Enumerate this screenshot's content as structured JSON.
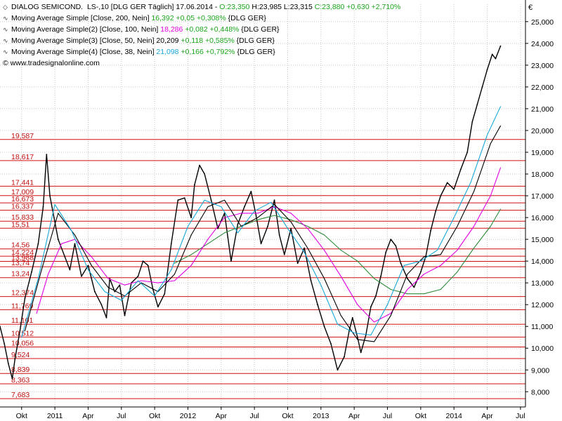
{
  "header": {
    "line1": {
      "symbol": "DIALOG SEMICOND.",
      "meta": "LS-,10 [DLG GER  Täglich] 17.06.2014 - ",
      "ohlc_open": "O:23,350",
      "ohlc_hlc": " H:23,985 L:23,315 ",
      "ohlc_close": "C:23,880",
      "change": " +0,630",
      "change_pct": " +2,710%"
    },
    "indicators": [
      {
        "label": "Moving Average Simple [Close, 200, Nein] ",
        "value": "16,392",
        "change": " +0,05",
        "change_pct": " +0,308%",
        "suffix": " {DLG GER}",
        "value_color_class": "up"
      },
      {
        "label": "Moving Average Simple(2) [Close, 100, Nein] ",
        "value": "18,286",
        "change": " +0,082",
        "change_pct": " +0,448%",
        "suffix": " {DLG GER}",
        "value_color_class": "mag"
      },
      {
        "label": "Moving Average Simple(3) [Close, 50, Nein] ",
        "value": "20,209",
        "change": " +0,118",
        "change_pct": " +0,585%",
        "suffix": " {DLG GER}",
        "value_color_class": "blk"
      },
      {
        "label": "Moving Average Simple(4) [Close, 38, Nein] ",
        "value": "21,098",
        "change": " +0,166",
        "change_pct": " +0,792%",
        "suffix": " {DLG GER}",
        "value_color_class": "cyn"
      }
    ],
    "copyright": "© www.tradesignalonline.com"
  },
  "colors": {
    "price": "#000000",
    "ma200": "#2e8b3a",
    "ma100": "#e000e0",
    "ma50": "#000000",
    "ma38": "#17a8d6",
    "levels": "#d01010",
    "grid": "#c8c8c8",
    "up_text": "#1aa51a"
  },
  "chart_data": {
    "type": "line",
    "currency_label": "€",
    "ylim": [
      7.3,
      25.8
    ],
    "y_ticks": [
      "8,000",
      "9,000",
      "10,000",
      "11,000",
      "12,000",
      "13,000",
      "14,000",
      "15,000",
      "16,000",
      "17,000",
      "18,000",
      "19,000",
      "20,000",
      "21,000",
      "22,000",
      "23,000",
      "24,000",
      "25,000"
    ],
    "x_ticks": [
      "Okt",
      "2011",
      "Apr",
      "Jul",
      "Okt",
      "2012",
      "Apr",
      "Jul",
      "Okt",
      "2013",
      "Apr",
      "Jul",
      "Okt",
      "2014",
      "Apr",
      "Jul"
    ],
    "x_tick_pos": [
      0.4,
      1.4,
      2.4,
      3.4,
      4.4,
      5.4,
      6.4,
      7.4,
      8.4,
      9.4,
      10.4,
      11.4,
      12.4,
      13.4,
      14.4,
      15.4
    ],
    "x_range": [
      -0.25,
      15.55
    ],
    "price_levels": [
      {
        "value": 19.587,
        "label": "19,587"
      },
      {
        "value": 18.617,
        "label": "18,617"
      },
      {
        "value": 17.441,
        "label": "17,441"
      },
      {
        "value": 17.009,
        "label": "17,009"
      },
      {
        "value": 16.673,
        "label": "16,673"
      },
      {
        "value": 16.337,
        "label": "16,337"
      },
      {
        "value": 15.833,
        "label": "15,833"
      },
      {
        "value": 15.51,
        "label": "15,51"
      },
      {
        "value": 14.56,
        "label": "14,56"
      },
      {
        "value": 14.224,
        "label": "14,224"
      },
      {
        "value": 13.988,
        "label": "13,988"
      },
      {
        "value": 13.74,
        "label": "13,74"
      },
      {
        "value": 13.24,
        "label": "13,24"
      },
      {
        "value": 12.374,
        "label": "12,374"
      },
      {
        "value": 11.769,
        "label": "11,769"
      },
      {
        "value": 11.101,
        "label": "11,101"
      },
      {
        "value": 10.512,
        "label": "10,512"
      },
      {
        "value": 10.056,
        "label": "10,056"
      },
      {
        "value": 9.524,
        "label": "9,524"
      },
      {
        "value": 8.839,
        "label": "8,839"
      },
      {
        "value": 8.363,
        "label": "8,363"
      },
      {
        "value": 7.683,
        "label": "7,683"
      }
    ],
    "series": [
      {
        "name": "DIALOG SEMICOND.",
        "key": "price",
        "x": [
          -0.25,
          -0.12,
          0.0,
          0.12,
          0.2,
          0.35,
          0.5,
          0.7,
          0.9,
          1.05,
          1.15,
          1.25,
          1.35,
          1.5,
          1.7,
          1.85,
          2.0,
          2.2,
          2.4,
          2.6,
          2.8,
          2.95,
          3.05,
          3.2,
          3.35,
          3.5,
          3.7,
          3.9,
          4.05,
          4.2,
          4.35,
          4.5,
          4.7,
          4.9,
          5.1,
          5.3,
          5.5,
          5.6,
          5.75,
          5.9,
          6.1,
          6.3,
          6.5,
          6.6,
          6.7,
          6.9,
          7.1,
          7.3,
          7.45,
          7.6,
          7.8,
          8.0,
          8.15,
          8.3,
          8.5,
          8.7,
          8.9,
          9.1,
          9.3,
          9.5,
          9.7,
          9.9,
          10.1,
          10.25,
          10.35,
          10.5,
          10.6,
          10.75,
          10.9,
          11.05,
          11.2,
          11.35,
          11.5,
          11.65,
          11.8,
          12.0,
          12.2,
          12.4,
          12.55,
          12.7,
          12.85,
          13.0,
          13.2,
          13.4,
          13.6,
          13.8,
          13.95,
          14.1,
          14.25,
          14.4,
          14.55,
          14.65,
          14.8
        ],
        "y": [
          11.0,
          10.2,
          9.3,
          8.6,
          9.5,
          10.8,
          12.3,
          13.5,
          14.8,
          16.5,
          18.9,
          17.0,
          16.2,
          15.0,
          14.2,
          13.6,
          14.8,
          13.3,
          13.8,
          12.6,
          12.0,
          11.4,
          13.2,
          12.6,
          12.9,
          11.5,
          13.0,
          13.3,
          14.0,
          13.8,
          12.7,
          11.9,
          12.5,
          14.8,
          16.8,
          16.9,
          16.0,
          17.5,
          18.4,
          18.0,
          16.8,
          15.5,
          16.2,
          15.1,
          14.0,
          15.7,
          16.5,
          17.2,
          16.1,
          14.8,
          15.6,
          16.8,
          15.2,
          14.3,
          15.5,
          13.9,
          14.6,
          13.1,
          12.0,
          11.0,
          10.2,
          9.0,
          9.6,
          10.8,
          11.4,
          10.5,
          9.8,
          10.6,
          11.9,
          12.4,
          13.3,
          14.4,
          15.0,
          14.7,
          13.9,
          13.2,
          12.8,
          13.5,
          14.2,
          15.4,
          16.3,
          17.0,
          17.6,
          17.3,
          18.2,
          19.0,
          20.4,
          21.2,
          22.0,
          22.8,
          23.5,
          23.3,
          23.88
        ]
      },
      {
        "name": "Moving Average Simple [Close, 200, Nein]",
        "key": "ma200",
        "x": [
          5.0,
          5.5,
          6.0,
          6.5,
          7.0,
          7.5,
          8.0,
          8.5,
          9.0,
          9.5,
          10.0,
          10.5,
          11.0,
          11.5,
          12.0,
          12.5,
          13.0,
          13.5,
          14.0,
          14.5,
          14.8
        ],
        "y": [
          13.9,
          14.3,
          14.8,
          15.3,
          15.6,
          15.9,
          16.1,
          15.9,
          15.6,
          15.2,
          14.5,
          14.0,
          13.2,
          12.7,
          12.5,
          12.5,
          12.7,
          13.5,
          14.6,
          15.6,
          16.39
        ]
      },
      {
        "name": "Moving Average Simple(2) [Close, 100, Nein]",
        "key": "ma100",
        "x": [
          0.85,
          1.2,
          1.6,
          2.0,
          2.5,
          3.0,
          3.5,
          4.0,
          4.5,
          5.0,
          5.5,
          6.0,
          6.5,
          7.0,
          7.5,
          8.0,
          8.5,
          9.0,
          9.5,
          10.0,
          10.5,
          11.0,
          11.5,
          12.0,
          12.5,
          13.0,
          13.5,
          14.0,
          14.5,
          14.8
        ],
        "y": [
          11.6,
          13.4,
          14.8,
          15.0,
          14.2,
          13.2,
          12.9,
          13.1,
          13.0,
          13.1,
          13.8,
          15.0,
          16.0,
          16.2,
          16.2,
          16.5,
          16.2,
          15.5,
          14.5,
          13.3,
          12.0,
          11.2,
          11.6,
          12.7,
          13.4,
          13.8,
          14.5,
          15.6,
          17.0,
          18.29
        ]
      },
      {
        "name": "Moving Average Simple(3) [Close, 50, Nein]",
        "key": "ma50",
        "x": [
          0.5,
          1.0,
          1.5,
          2.0,
          2.5,
          3.0,
          3.5,
          4.0,
          4.5,
          5.0,
          5.5,
          6.0,
          6.5,
          7.0,
          7.5,
          8.0,
          8.5,
          9.0,
          9.5,
          10.0,
          10.5,
          11.0,
          11.5,
          12.0,
          12.5,
          13.0,
          13.5,
          14.0,
          14.5,
          14.8
        ],
        "y": [
          10.8,
          13.6,
          16.2,
          15.2,
          13.8,
          12.8,
          12.4,
          13.0,
          12.6,
          13.4,
          15.2,
          16.5,
          16.8,
          15.6,
          16.0,
          16.6,
          15.8,
          14.6,
          13.2,
          11.5,
          10.4,
          10.3,
          11.5,
          13.4,
          14.2,
          14.3,
          15.6,
          17.2,
          19.4,
          20.21
        ]
      },
      {
        "name": "Moving Average Simple(4) [Close, 38, Nein]",
        "key": "ma38",
        "x": [
          0.4,
          0.9,
          1.4,
          1.9,
          2.4,
          2.9,
          3.4,
          3.9,
          4.4,
          4.9,
          5.4,
          5.9,
          6.4,
          6.9,
          7.4,
          7.9,
          8.4,
          8.9,
          9.4,
          9.9,
          10.4,
          10.9,
          11.4,
          11.9,
          12.4,
          12.9,
          13.4,
          13.9,
          14.4,
          14.8
        ],
        "y": [
          10.5,
          13.2,
          16.6,
          15.4,
          13.6,
          12.6,
          12.2,
          13.1,
          12.4,
          13.6,
          15.6,
          16.8,
          16.5,
          15.3,
          16.3,
          16.7,
          15.5,
          14.4,
          12.9,
          11.1,
          10.7,
          10.6,
          12.0,
          13.8,
          14.0,
          14.5,
          16.0,
          17.6,
          19.8,
          21.1
        ]
      }
    ]
  }
}
